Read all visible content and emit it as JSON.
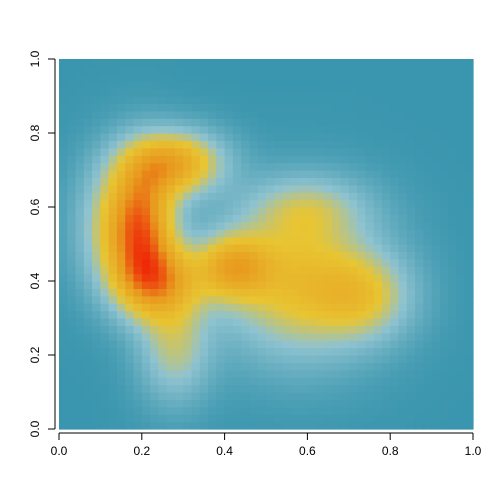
{
  "chart_data": {
    "type": "heatmap",
    "title": "",
    "xlabel": "",
    "ylabel": "",
    "xlim": [
      0,
      1
    ],
    "ylim": [
      0,
      1
    ],
    "x_ticks": [
      "0.0",
      "0.2",
      "0.4",
      "0.6",
      "0.8",
      "1.0"
    ],
    "y_ticks": [
      "0.0",
      "0.2",
      "0.4",
      "0.6",
      "0.8",
      "1.0"
    ],
    "grid": false,
    "color_scale": {
      "low": "#3a96ae",
      "mid_low": "#8fc3d0",
      "mid": "#e8c532",
      "mid_high": "#e89a1e",
      "high": "#ee2a08"
    },
    "density_components": [
      {
        "x": 0.2,
        "y": 0.55,
        "sx": 0.055,
        "sy": 0.12,
        "w": 1.0
      },
      {
        "x": 0.28,
        "y": 0.72,
        "sx": 0.08,
        "sy": 0.06,
        "w": 0.8
      },
      {
        "x": 0.24,
        "y": 0.4,
        "sx": 0.07,
        "sy": 0.07,
        "w": 0.75
      },
      {
        "x": 0.42,
        "y": 0.44,
        "sx": 0.06,
        "sy": 0.06,
        "w": 0.65
      },
      {
        "x": 0.58,
        "y": 0.4,
        "sx": 0.13,
        "sy": 0.14,
        "w": 0.62
      },
      {
        "x": 0.74,
        "y": 0.36,
        "sx": 0.08,
        "sy": 0.08,
        "w": 0.4
      },
      {
        "x": 0.28,
        "y": 0.22,
        "sx": 0.06,
        "sy": 0.1,
        "w": 0.4
      },
      {
        "x": 0.12,
        "y": 0.55,
        "sx": 0.06,
        "sy": 0.12,
        "w": 0.35
      },
      {
        "x": 0.6,
        "y": 0.6,
        "sx": 0.1,
        "sy": 0.06,
        "w": 0.3
      }
    ],
    "grid_resolution": 50
  }
}
